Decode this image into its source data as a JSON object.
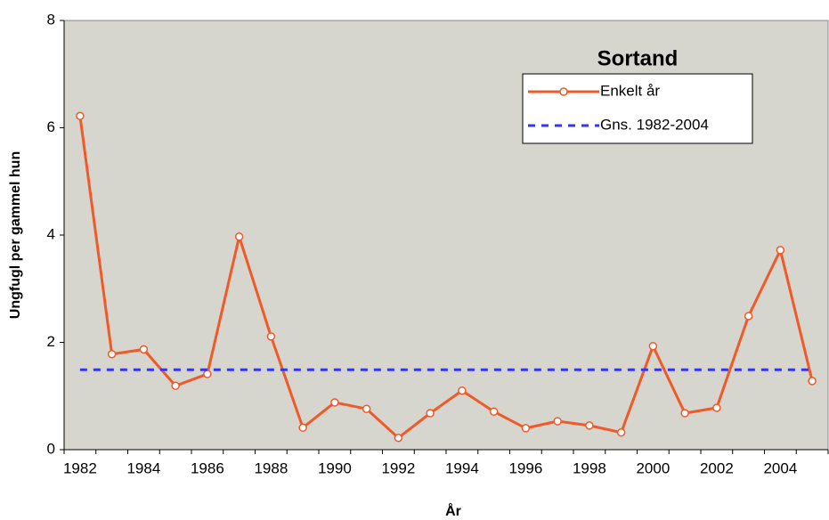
{
  "chart_data": {
    "type": "line",
    "title": "Sortand",
    "x_label": "År",
    "y_label": "Ungfugl per gammel hun",
    "categories": [
      "1982",
      null,
      "1984",
      null,
      "1986",
      null,
      "1988",
      null,
      "1990",
      null,
      "1992",
      null,
      "1994",
      null,
      "1996",
      null,
      "1998",
      null,
      "2000",
      null,
      "2002",
      null,
      "2004",
      null
    ],
    "series": [
      {
        "name": "Enkelt år",
        "color": "#f05a28",
        "style": "solid",
        "markers": true,
        "values": [
          6.22,
          1.78,
          1.87,
          1.19,
          1.41,
          3.97,
          2.11,
          0.41,
          0.88,
          0.76,
          0.22,
          0.68,
          1.1,
          0.71,
          0.4,
          0.53,
          0.45,
          0.32,
          1.93,
          0.68,
          0.78,
          2.49,
          3.72,
          1.28
        ]
      },
      {
        "name": "Gns. 1982-2004",
        "color": "#3333ff",
        "style": "dashed",
        "markers": false,
        "values": [
          1.49,
          1.49,
          1.49,
          1.49,
          1.49,
          1.49,
          1.49,
          1.49,
          1.49,
          1.49,
          1.49,
          1.49,
          1.49,
          1.49,
          1.49,
          1.49,
          1.49,
          1.49,
          1.49,
          1.49,
          1.49,
          1.49,
          1.49,
          1.49
        ]
      }
    ],
    "ylim": [
      0,
      8
    ],
    "yticks": [
      0,
      2,
      4,
      6,
      8
    ],
    "plot_background": "#d6d6ce",
    "legend": "upper right"
  }
}
